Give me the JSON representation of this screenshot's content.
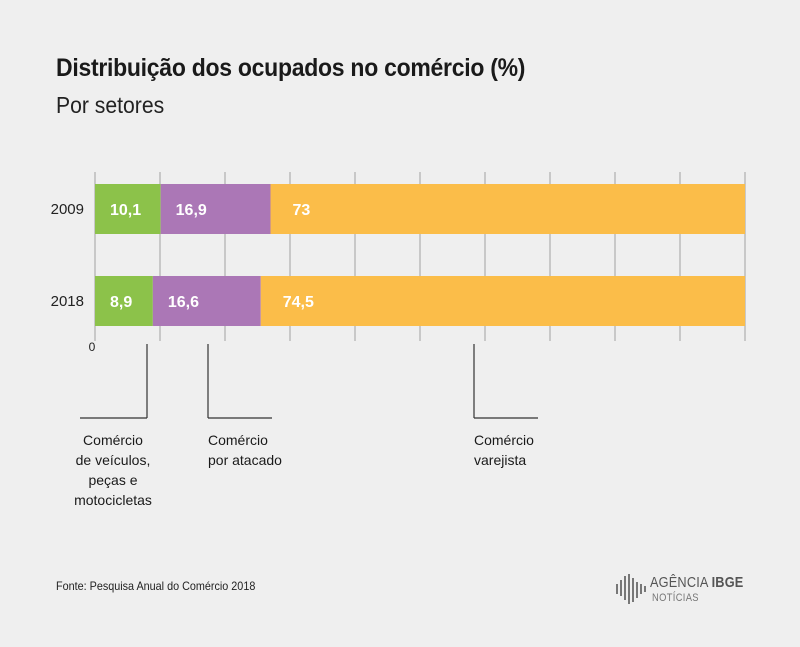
{
  "header": {
    "title": "Distribuição dos ocupados no comércio (%)",
    "subtitle": "Por setores"
  },
  "source": "Fonte: Pesquisa Anual do Comércio 2018",
  "logo": {
    "brand_part1": "AGÊNCIA",
    "brand_part2": "IBGE",
    "sub": "NOTÍCIAS"
  },
  "colors": {
    "background": "#efefef",
    "veiculos": "#8cc24a",
    "atacado": "#ab77b6",
    "varejo": "#fbbd49",
    "grid": "#a0a0a0",
    "bar_text": "#ffffff"
  },
  "chart_data": {
    "type": "bar",
    "orientation": "horizontal",
    "stacked": true,
    "title": "Distribuição dos ocupados no comércio (%)",
    "subtitle": "Por setores",
    "categories": [
      "2009",
      "2018"
    ],
    "series": [
      {
        "name": "Comércio de veículos, peças e motocicletas",
        "values": [
          10.1,
          8.9
        ],
        "labels": [
          "10,1",
          "8,9"
        ],
        "color": "#8cc24a"
      },
      {
        "name": "Comércio por atacado",
        "values": [
          16.9,
          16.6
        ],
        "labels": [
          "16,9",
          "16,6"
        ],
        "color": "#ab77b6"
      },
      {
        "name": "Comércio varejista",
        "values": [
          73,
          74.5
        ],
        "labels": [
          "73",
          "74,5"
        ],
        "color": "#fbbd49"
      }
    ],
    "xlim": [
      0,
      100
    ],
    "x_tick_label": "0",
    "grid": true,
    "legend_lines": [
      [
        "Comércio",
        "de veículos,",
        "peças e",
        "motocicletas"
      ],
      [
        "Comércio",
        "por atacado"
      ],
      [
        "Comércio",
        "varejista"
      ]
    ],
    "legend_placement": "bottom"
  }
}
